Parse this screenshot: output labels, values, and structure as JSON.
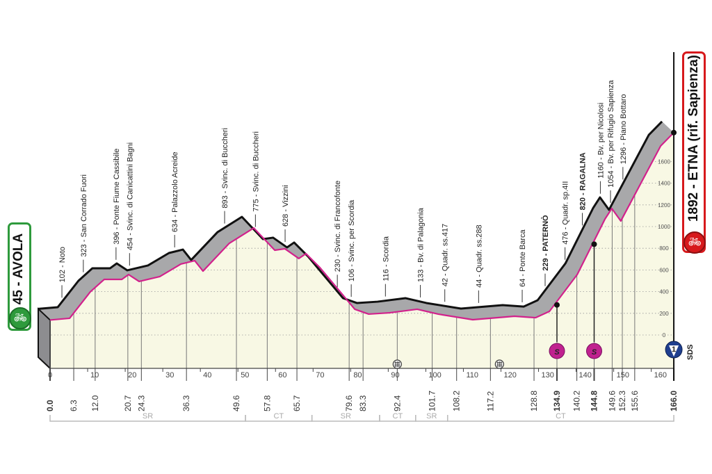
{
  "start": {
    "label": "45 - AVOLA",
    "color": "#2e9a3c",
    "icon": "cyclist-icon"
  },
  "finish": {
    "label": "1892 - ETNA (rif. Sapienza)",
    "color": "#d7191c",
    "icon": "cyclist-icon"
  },
  "chart_data": {
    "type": "area",
    "title": "",
    "xlabel": "",
    "ylabel": "",
    "xlim": [
      0,
      166
    ],
    "ylim": [
      0,
      1900
    ],
    "grid": true,
    "x_ticks": [
      0,
      10,
      20,
      30,
      40,
      50,
      60,
      70,
      80,
      90,
      100,
      110,
      120,
      130,
      140,
      150,
      160
    ],
    "y_ticks": [
      0,
      200,
      400,
      600,
      800,
      1000,
      1200,
      1400,
      1600
    ],
    "profile": {
      "x": [
        0,
        5.2,
        10.7,
        14.4,
        19.1,
        20.9,
        23.7,
        29.2,
        34.8,
        38.5,
        40.7,
        47.7,
        54.2,
        59.8,
        62.5,
        66.2,
        68.1,
        71.8,
        81.1,
        84.8,
        90.3,
        97.7,
        103.3,
        112.5,
        123.6,
        129.2,
        132.9,
        140.3,
        147.7,
        149.5,
        151.9,
        162.5,
        166
      ],
      "y": [
        45,
        62,
        322,
        445,
        445,
        493,
        425,
        473,
        596,
        630,
        527,
        801,
        952,
        733,
        747,
        651,
        699,
        562,
        151,
        103,
        116,
        151,
        103,
        48,
        82,
        68,
        130,
        493,
        1041,
        1144,
        1021,
        1760,
        1892
      ]
    },
    "waypoints": [
      {
        "km": "0.0",
        "x": 0,
        "alt": 45,
        "label": "",
        "bold": true
      },
      {
        "km": "6.3",
        "x": 6.3,
        "alt": 102,
        "label": "102 - Noto"
      },
      {
        "km": "12.0",
        "x": 12.0,
        "alt": 323,
        "label": "323 - San Corrado Fuori"
      },
      {
        "km": "20.7",
        "x": 20.7,
        "alt": 396,
        "label": "396 - Ponte Fiume Cassibile"
      },
      {
        "km": "24.3",
        "x": 24.3,
        "alt": 454,
        "label": "454 - Svinc. di Canicattini Bagni"
      },
      {
        "km": "36.3",
        "x": 36.3,
        "alt": 634,
        "label": "634 - Palazzolo Acreide"
      },
      {
        "km": "49.6",
        "x": 49.6,
        "alt": 893,
        "label": "893 - Svinc. di Buccheri"
      },
      {
        "km": "57.8",
        "x": 57.8,
        "alt": 775,
        "label": "775 - Svinc. di Buccheri"
      },
      {
        "km": "65.7",
        "x": 65.7,
        "alt": 628,
        "label": "628 - Vizzini"
      },
      {
        "km": "79.6",
        "x": 79.6,
        "alt": 230,
        "label": "230 - Svinc. di Francofonte"
      },
      {
        "km": "83.3",
        "x": 83.3,
        "alt": 106,
        "label": "106 - Svinc. per Scordia"
      },
      {
        "km": "92.4",
        "x": 92.4,
        "alt": 116,
        "label": "116 - Scordia"
      },
      {
        "km": "101.7",
        "x": 101.7,
        "alt": 133,
        "label": "133 - Bv. di Palagonia"
      },
      {
        "km": "108.2",
        "x": 108.2,
        "alt": 42,
        "label": "42 - Quadr. ss.417"
      },
      {
        "km": "117.2",
        "x": 117.2,
        "alt": 44,
        "label": "44 - Quadr. ss.288"
      },
      {
        "km": "128.8",
        "x": 128.8,
        "alt": 64,
        "label": "64 - Ponte Barca"
      },
      {
        "km": "134.9",
        "x": 134.9,
        "alt": 229,
        "label": "229 - PATERNÒ",
        "bold": true
      },
      {
        "km": "140.2",
        "x": 140.2,
        "alt": 476,
        "label": "476 - Quadr. sp.4II"
      },
      {
        "km": "144.8",
        "x": 144.8,
        "alt": 820,
        "label": "820 - RAGALNA",
        "bold": true
      },
      {
        "km": "149.6",
        "x": 149.6,
        "alt": 1160,
        "label": "1160 - Bv. per Nicolosi"
      },
      {
        "km": "152.3",
        "x": 152.3,
        "alt": 1054,
        "label": "1054 - Bv. per Rifugio Sapienza"
      },
      {
        "km": "155.6",
        "x": 155.6,
        "alt": 1296,
        "label": "1296 - Piano Bottaro"
      },
      {
        "km": "166.0",
        "x": 166.0,
        "alt": 1892,
        "label": "",
        "bold": true
      }
    ],
    "sprints": [
      {
        "x": 134.9,
        "label": "S"
      },
      {
        "x": 144.8,
        "label": "S"
      }
    ],
    "feed_zones": [
      92.4,
      119.6
    ],
    "finish_marker": {
      "x": 166,
      "label": "1",
      "text": "SDS"
    },
    "sectors": [
      {
        "label": "SR",
        "from": 0,
        "to": 52
      },
      {
        "label": "CT",
        "from": 52,
        "to": 69.7
      },
      {
        "label": "SR",
        "from": 69.7,
        "to": 87.7
      },
      {
        "label": "CT",
        "from": 87.7,
        "to": 97.3
      },
      {
        "label": "SR",
        "from": 97.3,
        "to": 105.8
      },
      {
        "label": "CT",
        "from": 105.8,
        "to": 166
      }
    ],
    "colors": {
      "profile_line": "#d2218c",
      "fill": "#f8f8e4",
      "band": "#a8a8aa",
      "sprint": "#c0218f",
      "finish_marker": "#1f3f8f"
    }
  }
}
